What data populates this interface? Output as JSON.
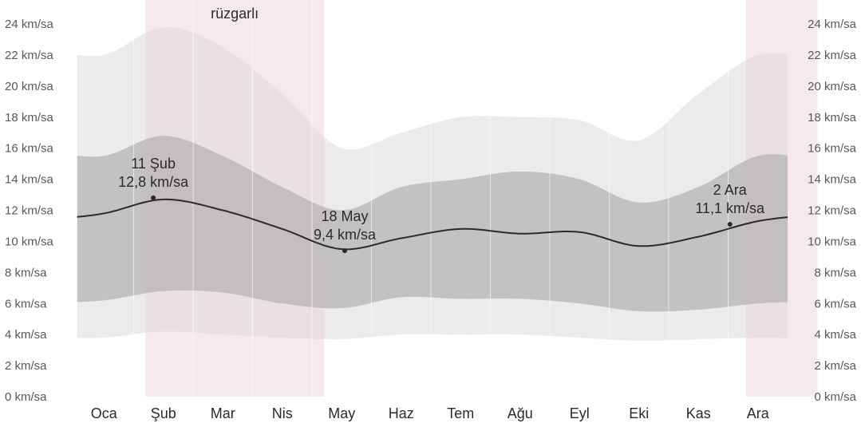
{
  "chart_data": {
    "type": "area",
    "title": "",
    "xlabel": "",
    "ylabel": "",
    "y_unit": "km/sa",
    "ylim": [
      0,
      24
    ],
    "y_ticks": [
      "0 km/sa",
      "2 km/sa",
      "4 km/sa",
      "6 km/sa",
      "8 km/sa",
      "10 km/sa",
      "12 km/sa",
      "14 km/sa",
      "16 km/sa",
      "18 km/sa",
      "20 km/sa",
      "22 km/sa",
      "24 km/sa"
    ],
    "months": [
      "Oca",
      "Şub",
      "Mar",
      "Nis",
      "May",
      "Haz",
      "Tem",
      "Ağu",
      "Eyl",
      "Eki",
      "Kas",
      "Ara"
    ],
    "season_label": "rüzgarlı",
    "windy_season_months": [
      {
        "from_month": 1.2,
        "to_month": 4.2
      },
      {
        "from_month": 11.3,
        "to_month": 12.5
      }
    ],
    "x_month": [
      0.5,
      1.5,
      2.5,
      3.5,
      4.5,
      5.5,
      6.5,
      7.5,
      8.5,
      9.5,
      10.5,
      11.5
    ],
    "series": [
      {
        "band": "p90",
        "values": [
          22.0,
          23.8,
          22.5,
          19.5,
          16.0,
          17.0,
          18.0,
          18.0,
          17.8,
          16.5,
          19.5,
          22.0
        ]
      },
      {
        "band": "p75",
        "values": [
          15.5,
          16.8,
          15.5,
          13.5,
          12.0,
          13.5,
          14.0,
          14.5,
          14.0,
          12.5,
          13.5,
          15.5
        ]
      },
      {
        "band": "average",
        "values": [
          11.8,
          12.7,
          12.0,
          10.8,
          9.5,
          10.2,
          10.8,
          10.5,
          10.6,
          9.7,
          10.3,
          11.3
        ]
      },
      {
        "band": "p25",
        "values": [
          6.2,
          6.8,
          6.7,
          6.0,
          5.7,
          6.4,
          6.3,
          6.3,
          6.0,
          5.5,
          5.6,
          6.0
        ]
      },
      {
        "band": "p10",
        "values": [
          3.8,
          4.2,
          4.0,
          3.8,
          3.7,
          4.0,
          4.0,
          4.0,
          3.8,
          3.6,
          3.7,
          3.8
        ]
      }
    ],
    "annotations": [
      {
        "date": "11 Şub",
        "value_label": "12,8 km/sa",
        "x_month": 1.33,
        "y": 12.8
      },
      {
        "date": "18 May",
        "value_label": "9,4 km/sa",
        "x_month": 4.55,
        "y": 9.4
      },
      {
        "date": "2 Ara",
        "value_label": "11,1 km/sa",
        "x_month": 11.03,
        "y": 11.1
      }
    ],
    "grid": {
      "vertical_month_lines": true,
      "horizontal": false
    },
    "colors": {
      "windy_season": "#f6e9ed",
      "band_outer": "#ddd9db",
      "band_inner": "#b6b3b5",
      "average_line": "#2b2b2b",
      "tick_text": "#555a60",
      "month_text": "#2b2b2b"
    }
  }
}
